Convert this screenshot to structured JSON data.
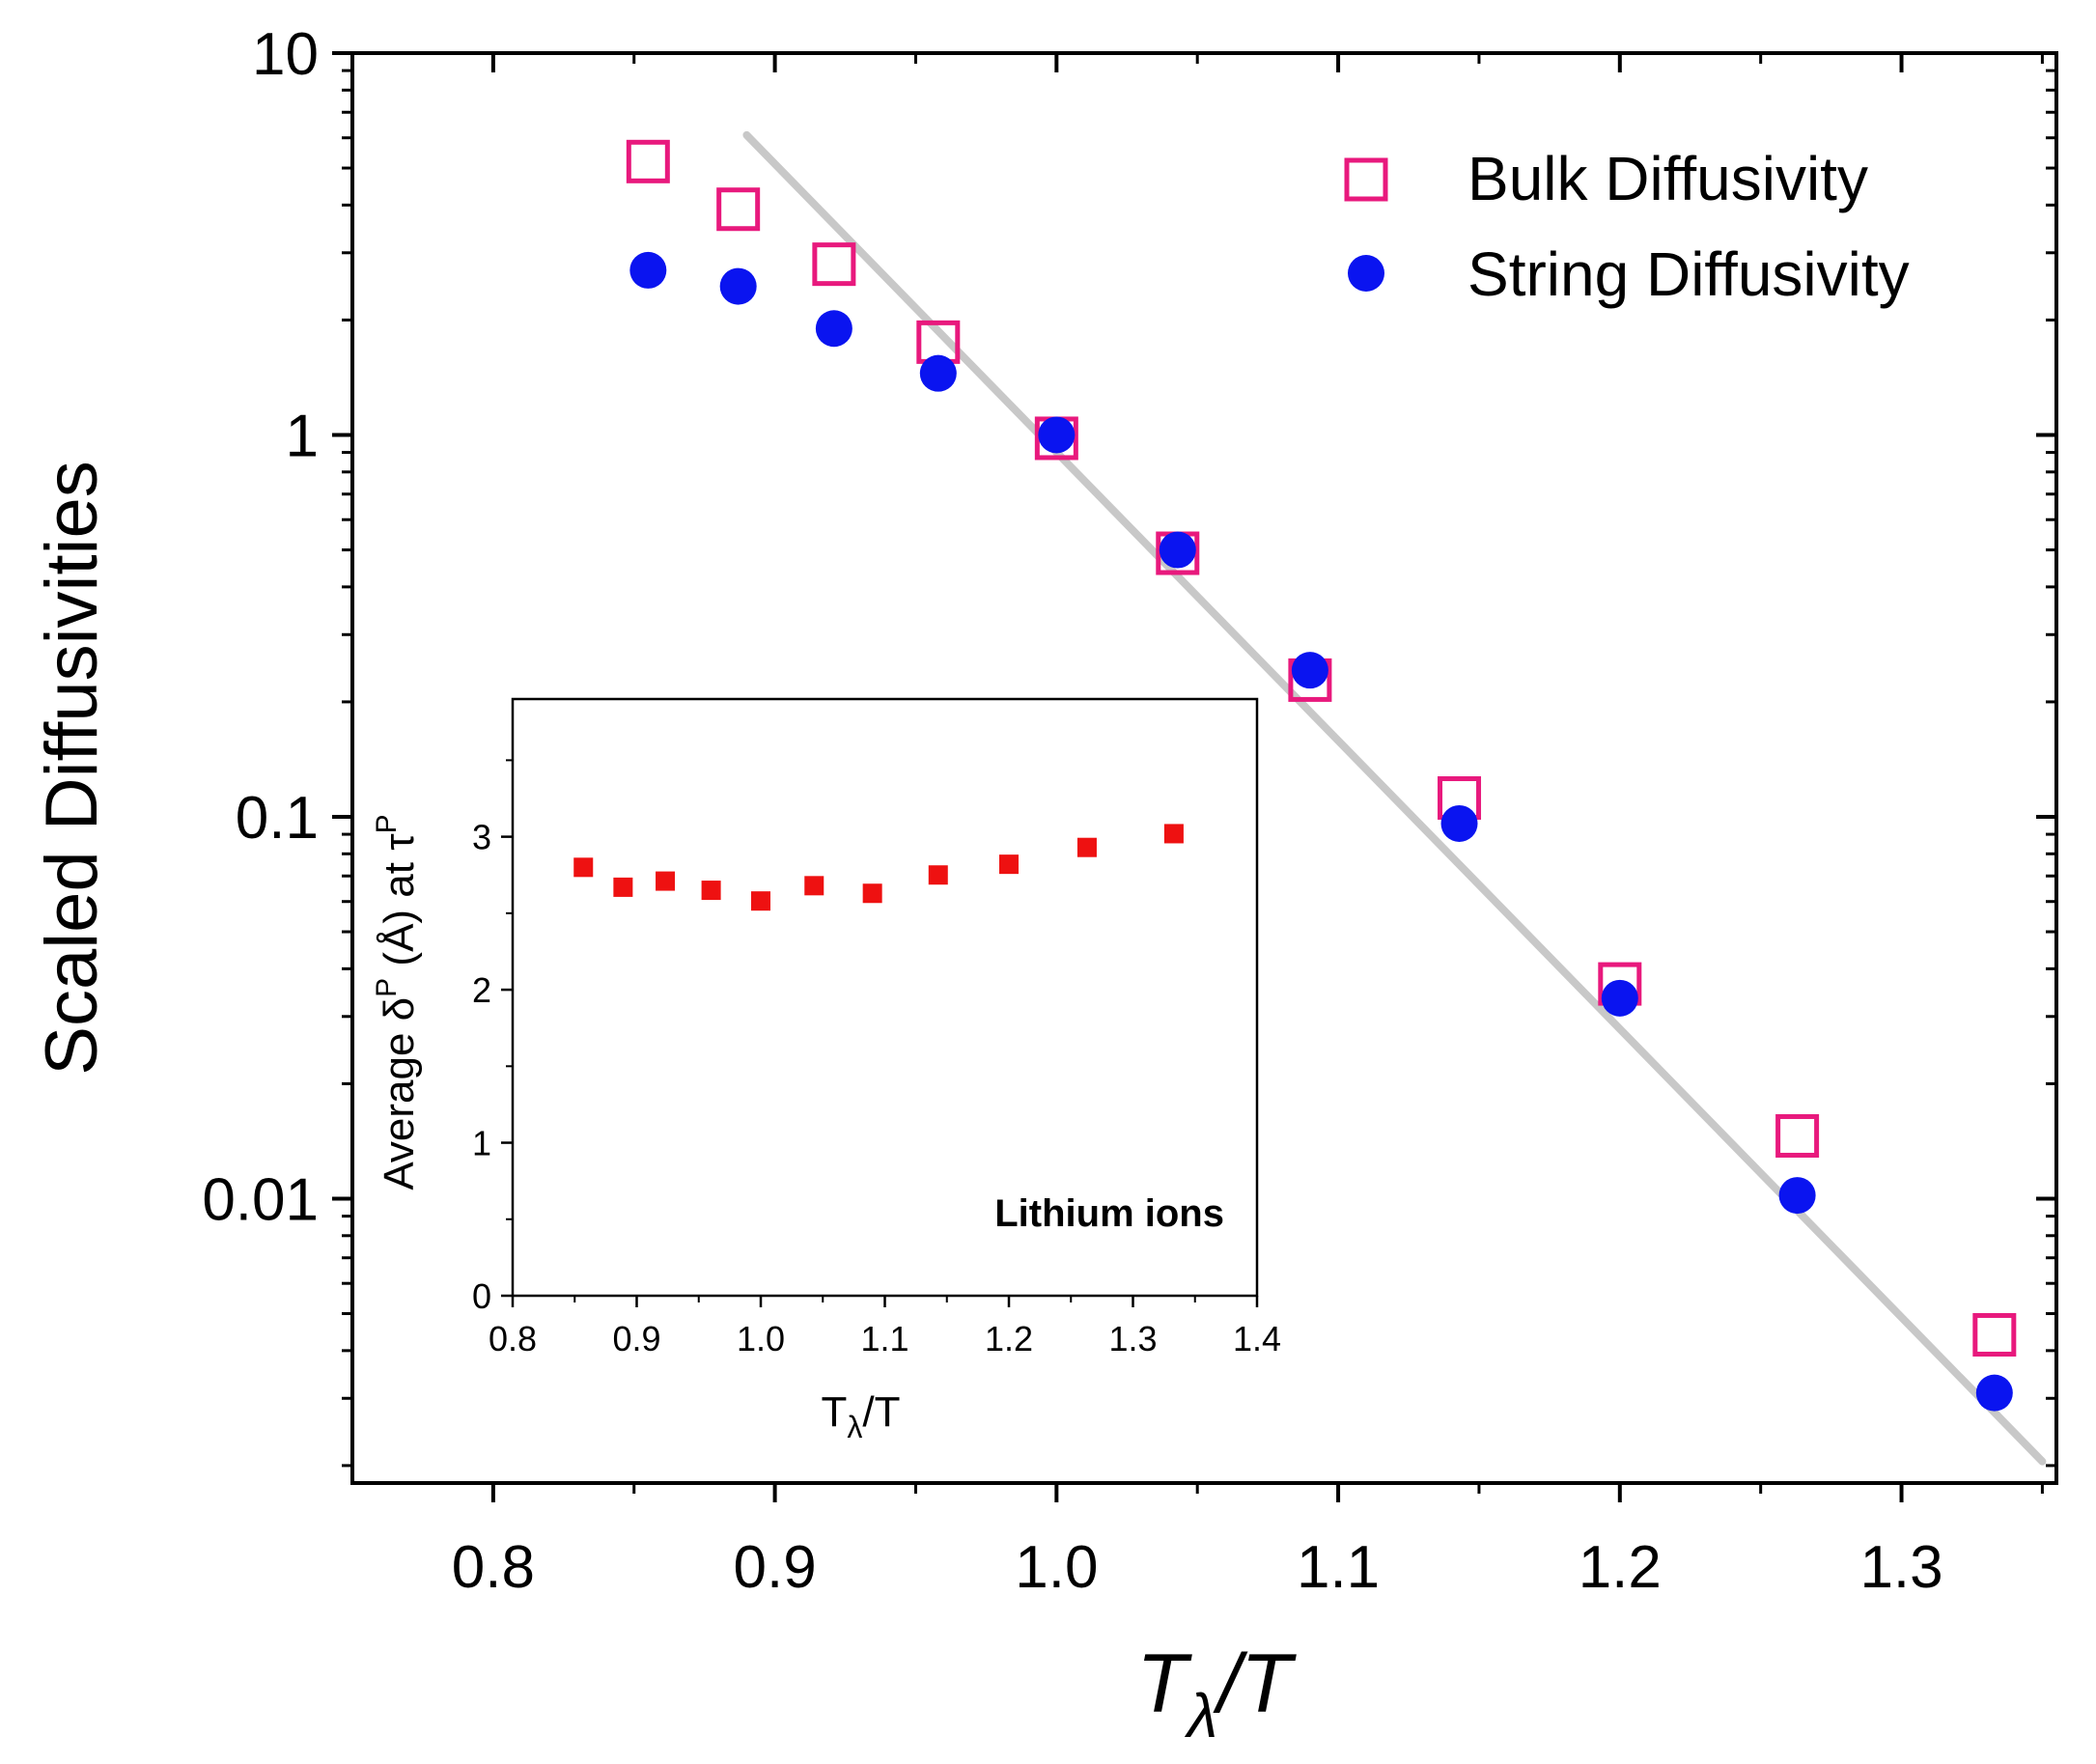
{
  "chart_data": [
    {
      "type": "scatter",
      "xlabel_main": "T",
      "xlabel_sub": "λ",
      "xlabel_tail": "/T",
      "ylabel": "Scaled Diffusivities",
      "yscale": "log",
      "xlim": [
        0.75,
        1.355
      ],
      "ylim": [
        0.0018,
        10
      ],
      "x_ticks": [
        0.8,
        0.9,
        1.0,
        1.1,
        1.2,
        1.3
      ],
      "x_tick_labels": [
        "0.8",
        "0.9",
        "1.0",
        "1.1",
        "1.2",
        "1.3"
      ],
      "y_ticks": [
        0.01,
        0.1,
        1,
        10
      ],
      "y_tick_labels": [
        "0.01",
        "0.1",
        "1",
        "10"
      ],
      "legend_position": "top-right",
      "series": [
        {
          "name": "Bulk Diffusivity",
          "marker": "open-square",
          "color": "#e8197d",
          "x": [
            0.855,
            0.887,
            0.921,
            0.958,
            1.0,
            1.043,
            1.09,
            1.143,
            1.2,
            1.263,
            1.333
          ],
          "y": [
            5.2,
            3.9,
            2.8,
            1.75,
            0.98,
            0.49,
            0.228,
            0.112,
            0.0365,
            0.0146,
            0.0044
          ]
        },
        {
          "name": "String Diffusivity",
          "marker": "filled-circle",
          "color": "#0a14f0",
          "x": [
            0.855,
            0.887,
            0.921,
            0.958,
            1.0,
            1.043,
            1.09,
            1.143,
            1.2,
            1.263,
            1.333
          ],
          "y": [
            2.7,
            2.45,
            1.9,
            1.45,
            1.0,
            0.5,
            0.242,
            0.096,
            0.0335,
            0.0102,
            0.0031
          ]
        }
      ],
      "fit_line": {
        "color": "#c8c8c8",
        "x": [
          0.89,
          1.35
        ],
        "y": [
          6.1,
          0.00205
        ]
      }
    },
    {
      "type": "scatter",
      "title": "Lithium ions",
      "xlabel_main": "T",
      "xlabel_sub": "λ",
      "xlabel_tail": "/T",
      "ylabel_prefix": "Average δ",
      "ylabel_sup1": "P",
      "ylabel_mid": " (Å) at τ",
      "ylabel_sup2": "P",
      "xlim": [
        0.8,
        1.4
      ],
      "ylim": [
        0,
        3.9
      ],
      "x_ticks": [
        0.8,
        0.9,
        1.0,
        1.1,
        1.2,
        1.3,
        1.4
      ],
      "x_tick_labels": [
        "0.8",
        "0.9",
        "1.0",
        "1.1",
        "1.2",
        "1.3",
        "1.4"
      ],
      "y_ticks": [
        0,
        1,
        2,
        3
      ],
      "y_tick_labels": [
        "0",
        "1",
        "2",
        "3"
      ],
      "series": [
        {
          "name": "Lithium ions",
          "marker": "filled-square",
          "color": "#ee1111",
          "x": [
            0.857,
            0.889,
            0.923,
            0.96,
            1.0,
            1.043,
            1.09,
            1.143,
            1.2,
            1.263,
            1.333
          ],
          "y": [
            2.8,
            2.67,
            2.71,
            2.65,
            2.58,
            2.68,
            2.63,
            2.75,
            2.82,
            2.93,
            3.02
          ]
        }
      ]
    }
  ]
}
